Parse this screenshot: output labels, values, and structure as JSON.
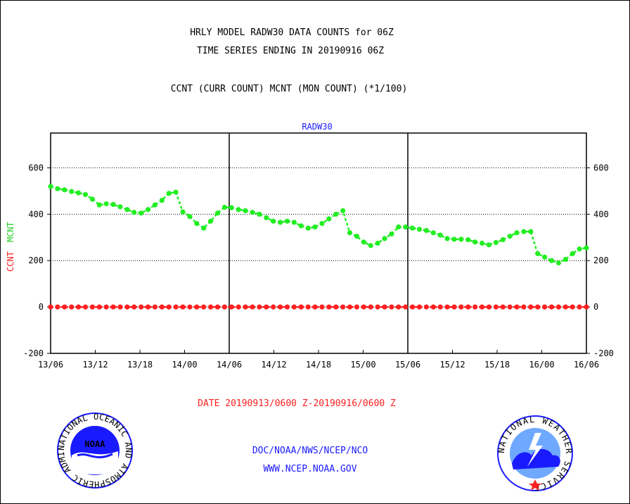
{
  "header": {
    "title_line1": "HRLY MODEL RADW30 DATA COUNTS for 06Z",
    "title_line2": "TIME SERIES ENDING IN 20190916 06Z",
    "legend_line": "CCNT (CURR COUNT) MCNT (MON COUNT) (*1/100)"
  },
  "footer": {
    "date_range": "DATE 20190913/0600 Z-20190916/0600 Z",
    "org_path": "DOC/NOAA/NWS/NCEP/NCO",
    "url": "WWW.NCEP.NOAA.GOV"
  },
  "logos": {
    "noaa_text": "NOAA",
    "noaa_ring": "NATIONAL OCEANIC AND ATMOSPHERIC ADMINISTRATION U.S. DEPARTMENT OF COMMERCE",
    "nws_ring": "NATIONAL WEATHER SERVICE"
  },
  "colors": {
    "ccnt": "#ff2020",
    "mcnt": "#22ee22",
    "label_blue": "#1a1aff"
  },
  "chart_data": {
    "type": "line",
    "panel_label": "RADW30",
    "ylabel_ccnt": "CCNT",
    "ylabel_mcnt": "MCNT",
    "ylim": [
      -200,
      750
    ],
    "yticks": [
      600,
      400,
      200,
      0,
      -200
    ],
    "ytick_labels": [
      "600",
      "400",
      "200",
      "0",
      "-200"
    ],
    "xlim_hours": [
      0,
      72
    ],
    "x_tick_labels": [
      "13/06",
      "13/12",
      "13/18",
      "14/00",
      "14/06",
      "14/12",
      "14/18",
      "15/00",
      "15/06",
      "15/12",
      "15/18",
      "16/00",
      "16/06"
    ],
    "major_divisions": [
      "14/06",
      "15/06"
    ],
    "grid": true,
    "series": [
      {
        "name": "MCNT",
        "color": "#22ee22",
        "values": [
          520,
          510,
          505,
          498,
          492,
          485,
          465,
          440,
          445,
          442,
          432,
          420,
          408,
          405,
          420,
          440,
          460,
          490,
          495,
          410,
          390,
          360,
          340,
          370,
          405,
          430,
          428,
          420,
          415,
          408,
          400,
          385,
          370,
          365,
          370,
          365,
          350,
          340,
          345,
          360,
          380,
          400,
          415,
          320,
          305,
          280,
          265,
          275,
          295,
          315,
          345,
          345,
          340,
          335,
          330,
          320,
          310,
          295,
          292,
          292,
          290,
          280,
          275,
          268,
          278,
          290,
          305,
          320,
          325,
          325,
          230,
          215,
          200,
          190,
          205,
          230,
          250,
          255
        ]
      },
      {
        "name": "CCNT",
        "color": "#ff2020",
        "values": [
          0,
          0,
          0,
          0,
          0,
          0,
          0,
          0,
          0,
          0,
          0,
          0,
          0,
          0,
          0,
          0,
          0,
          0,
          0,
          0,
          0,
          0,
          0,
          0,
          0,
          0,
          0,
          0,
          0,
          0,
          0,
          0,
          0,
          0,
          0,
          0,
          0,
          0,
          0,
          0,
          0,
          0,
          0,
          0,
          0,
          0,
          0,
          0,
          0,
          0,
          0,
          0,
          0,
          0,
          0,
          0,
          0,
          0,
          0,
          0,
          0,
          0,
          0,
          0,
          0,
          0,
          0,
          0,
          0,
          0,
          0,
          0,
          0,
          0,
          0,
          0,
          0,
          0
        ]
      }
    ]
  }
}
